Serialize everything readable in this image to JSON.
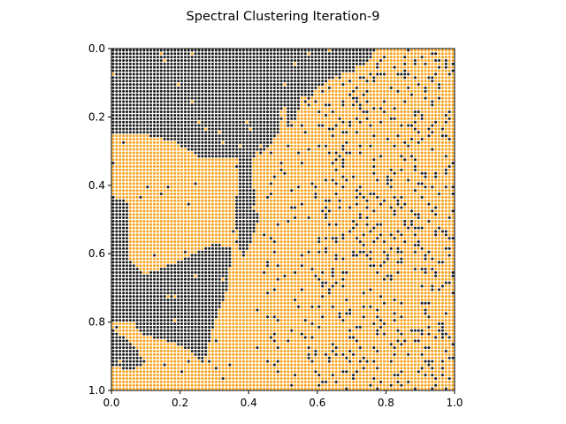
{
  "chart_data": {
    "type": "scatter",
    "title": "Spectral Clustering Iteration-9",
    "xlabel": "",
    "ylabel": "",
    "xlim": [
      0.0,
      1.0
    ],
    "ylim": [
      1.0,
      0.0
    ],
    "y_inverted": true,
    "grid": false,
    "legend": "none",
    "x_ticks": [
      "0.0",
      "0.2",
      "0.4",
      "0.6",
      "0.8",
      "1.0"
    ],
    "y_ticks": [
      "0.0",
      "0.2",
      "0.4",
      "0.6",
      "0.8",
      "1.0"
    ],
    "point_grid": {
      "columns": 100,
      "rows": 100,
      "x_range": [
        0.0,
        1.0
      ],
      "y_range": [
        0.0,
        1.0
      ]
    },
    "series": [
      {
        "color": "#1a1a1a",
        "values": "cluster 0 (dark region)"
      },
      {
        "color": "#f7a21c",
        "values": "cluster 1 (orange region)"
      }
    ],
    "approximate_cluster_0_regions": [
      {
        "x": [
          0.0,
          0.77
        ],
        "y": [
          0.0,
          0.25
        ]
      },
      {
        "x": [
          0.0,
          0.48
        ],
        "y": [
          0.25,
          0.27
        ]
      },
      {
        "x": [
          0.0,
          0.05
        ],
        "y": [
          0.43,
          1.0
        ]
      },
      {
        "x": [
          0.05,
          0.35
        ],
        "y": [
          0.6,
          0.9
        ]
      }
    ]
  }
}
